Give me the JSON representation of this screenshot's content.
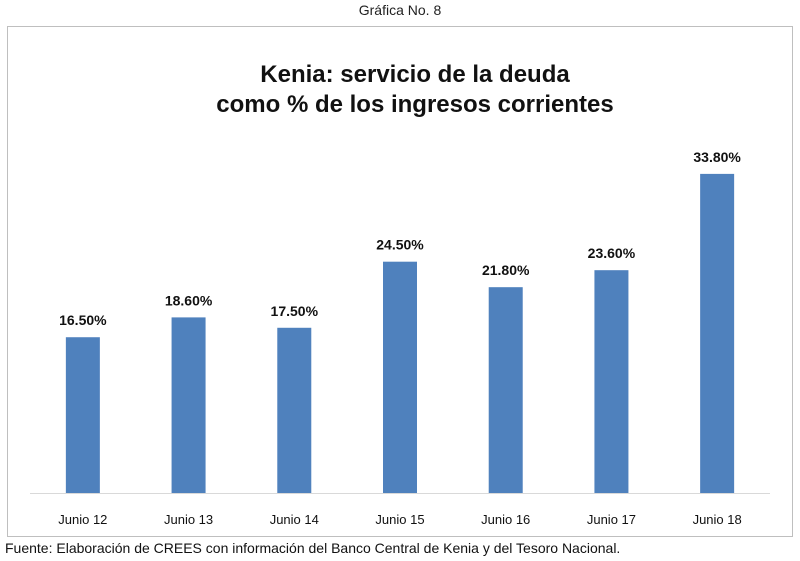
{
  "figure_heading": "Gráfica No. 8",
  "source_note": "Fuente: Elaboración de CREES con información del Banco Central de Kenia y del Tesoro Nacional.",
  "colors": {
    "bar": "#4f81bd",
    "axis": "#d9d9d9"
  },
  "chart_data": {
    "type": "bar",
    "title": "Kenia: servicio de la deuda como % de los ingresos corrientes",
    "title_lines": [
      "Kenia: servicio de la deuda",
      "como % de los ingresos corrientes"
    ],
    "categories": [
      "Junio 12",
      "Junio 13",
      "Junio 14",
      "Junio 15",
      "Junio 16",
      "Junio 17",
      "Junio 18"
    ],
    "values": [
      16.5,
      18.6,
      17.5,
      24.5,
      21.8,
      23.6,
      33.8
    ],
    "data_labels": [
      "16.50%",
      "18.60%",
      "17.50%",
      "24.50%",
      "21.80%",
      "23.60%",
      "33.80%"
    ],
    "xlabel": "",
    "ylabel": "",
    "ylim": [
      0,
      34
    ],
    "grid": false,
    "legend": "none"
  }
}
